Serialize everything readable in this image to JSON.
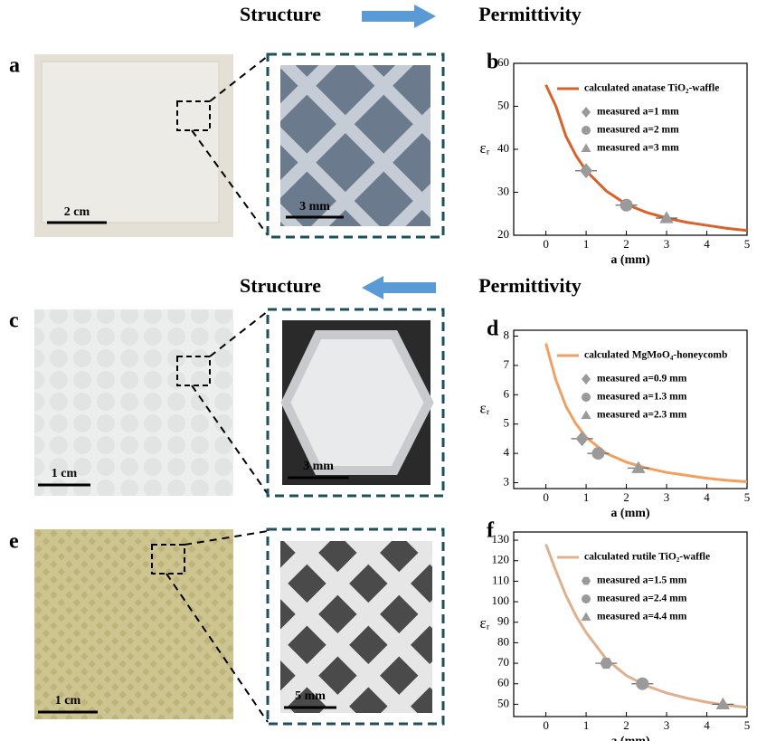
{
  "headers": [
    {
      "left": "Structure",
      "right": "Permittivity"
    },
    {
      "left": "Structure",
      "right": "Permittivity"
    }
  ],
  "photos": [
    {
      "label": "a",
      "scale": "2 cm",
      "zoom_scale": "3 mm"
    },
    {
      "label": "c",
      "scale": "1 cm",
      "zoom_scale": "3 mm"
    },
    {
      "label": "e",
      "scale": "1 cm",
      "zoom_scale": "5 mm"
    }
  ],
  "chart_data": [
    {
      "type": "line",
      "panel_label": "b",
      "xlabel": "a (mm)",
      "ylabel": "εᵣ",
      "xlim": [
        -0.8,
        5
      ],
      "ylim": [
        20,
        60
      ],
      "xticks": [
        0,
        1,
        2,
        3,
        4,
        5
      ],
      "yticks": [
        20,
        30,
        40,
        50,
        60
      ],
      "series": [
        {
          "name": "calculated anatase TiO₂-waffle",
          "color": "#d9622b",
          "x": [
            0,
            0.25,
            0.5,
            0.75,
            1,
            1.5,
            2,
            2.5,
            3,
            3.5,
            4,
            4.5,
            5
          ],
          "values": [
            55,
            50,
            43,
            38.5,
            35,
            30.3,
            27.2,
            25.3,
            24,
            23,
            22.3,
            21.6,
            21.1
          ]
        },
        {
          "name": "measured  a=1 mm",
          "color": "#9a9a9a",
          "marker": "diamond",
          "x": [
            1
          ],
          "values": [
            35
          ]
        },
        {
          "name": "measured  a=2 mm",
          "color": "#9a9a9a",
          "marker": "circle",
          "x": [
            2
          ],
          "values": [
            27
          ]
        },
        {
          "name": "measured  a=3 mm",
          "color": "#9a9a9a",
          "marker": "triangle",
          "x": [
            3
          ],
          "values": [
            24
          ]
        }
      ]
    },
    {
      "type": "line",
      "panel_label": "d",
      "xlabel": "a (mm)",
      "ylabel": "εᵣ",
      "xlim": [
        -0.8,
        5
      ],
      "ylim": [
        2.8,
        8.2
      ],
      "xticks": [
        0,
        1,
        2,
        3,
        4,
        5
      ],
      "yticks": [
        3,
        4,
        5,
        6,
        7,
        8
      ],
      "series": [
        {
          "name": "calculated MgMoO₄-honeycomb",
          "color": "#f0a060",
          "x": [
            0,
            0.25,
            0.5,
            0.75,
            1,
            1.5,
            2,
            2.5,
            3,
            3.5,
            4,
            4.5,
            5
          ],
          "values": [
            7.75,
            6.5,
            5.6,
            5.0,
            4.55,
            4.0,
            3.7,
            3.5,
            3.35,
            3.25,
            3.15,
            3.08,
            3.03
          ]
        },
        {
          "name": "measured a=0.9 mm",
          "color": "#9a9a9a",
          "marker": "diamond",
          "x": [
            0.9
          ],
          "values": [
            4.5
          ]
        },
        {
          "name": "measured a=1.3 mm",
          "color": "#9a9a9a",
          "marker": "circle",
          "x": [
            1.3
          ],
          "values": [
            4.0
          ]
        },
        {
          "name": "measured a=2.3 mm",
          "color": "#9a9a9a",
          "marker": "triangle",
          "x": [
            2.3
          ],
          "values": [
            3.5
          ]
        }
      ]
    },
    {
      "type": "line",
      "panel_label": "f",
      "xlabel": "a (mm)",
      "ylabel": "εᵣ",
      "xlim": [
        -0.8,
        5
      ],
      "ylim": [
        44,
        134
      ],
      "xticks": [
        0,
        1,
        2,
        3,
        4,
        5
      ],
      "yticks": [
        50,
        60,
        70,
        80,
        90,
        100,
        110,
        120,
        130
      ],
      "series": [
        {
          "name": "calculated rutile TiO₂-waffle",
          "color": "#deb08e",
          "x": [
            0,
            0.25,
            0.5,
            0.75,
            1,
            1.5,
            2,
            2.5,
            3,
            3.5,
            4,
            4.5,
            5
          ],
          "values": [
            128,
            115,
            103,
            93,
            85,
            72,
            64,
            59,
            55.5,
            53,
            51,
            49.5,
            48.5
          ]
        },
        {
          "name": "measured  a=1.5 mm",
          "color": "#9a9a9a",
          "marker": "hexagon",
          "x": [
            1.5
          ],
          "values": [
            70
          ]
        },
        {
          "name": "measured  a=2.4 mm",
          "color": "#9a9a9a",
          "marker": "circle",
          "x": [
            2.4
          ],
          "values": [
            60
          ]
        },
        {
          "name": "measured  a=4.4 mm",
          "color": "#9a9a9a",
          "marker": "triangle",
          "x": [
            4.4
          ],
          "values": [
            50
          ]
        }
      ]
    }
  ]
}
